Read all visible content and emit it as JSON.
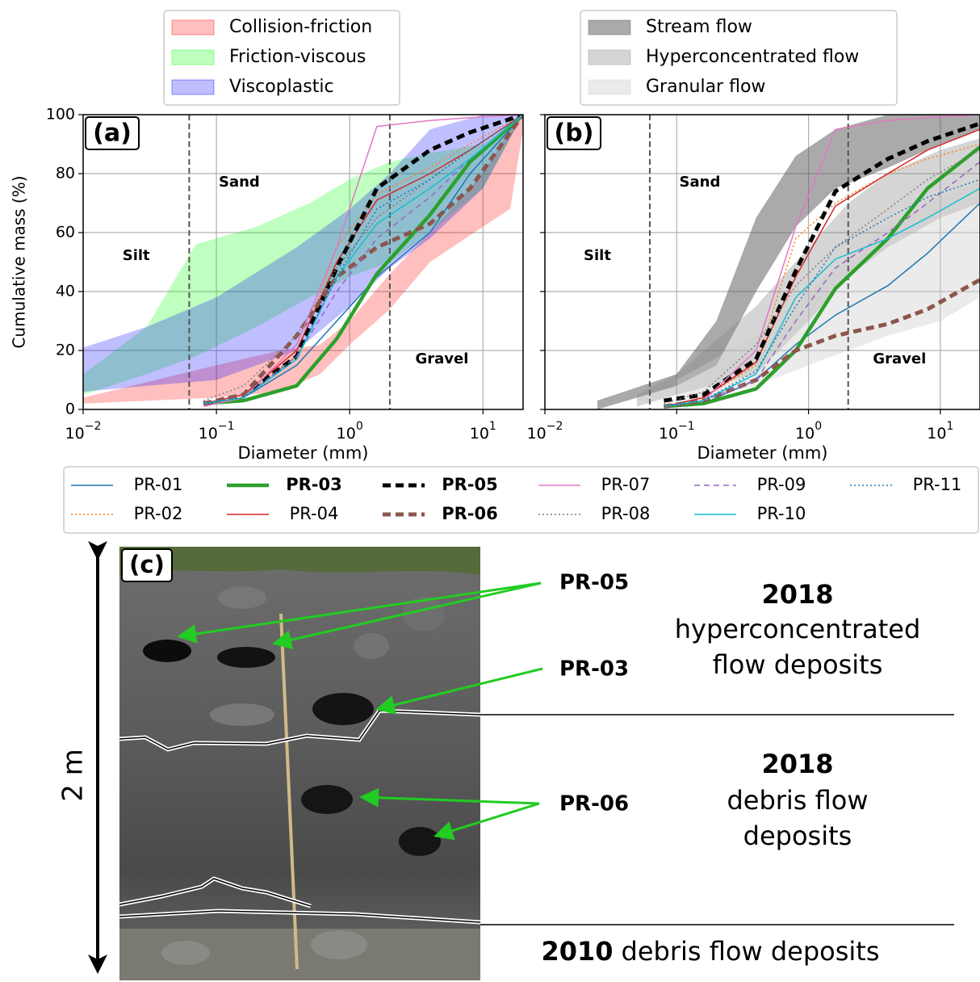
{
  "chart_data": [
    {
      "type": "line",
      "label": "(a)",
      "xlabel": "Diameter (mm)",
      "ylabel": "Cumulative mass (%)",
      "xscale": "log",
      "xlim": [
        0.01,
        20
      ],
      "xticks": [
        {
          "value": 0.01,
          "label": "10",
          "exponent": "−2"
        },
        {
          "value": 0.1,
          "label": "10",
          "exponent": "−1"
        },
        {
          "value": 1,
          "label": "10",
          "exponent": "0"
        },
        {
          "value": 10,
          "label": "10",
          "exponent": "1"
        }
      ],
      "ylim": [
        0,
        100
      ],
      "yticks": [
        0,
        20,
        40,
        60,
        80,
        100
      ],
      "grid": true,
      "boundaries": [
        0.0625,
        2
      ],
      "regions": [
        "Silt",
        "Sand",
        "Gravel"
      ],
      "bands": [
        {
          "name": "Collision-friction",
          "color": "#ff0000",
          "opacity": 0.25,
          "x": [
            0.01,
            0.1,
            0.3,
            0.6,
            1,
            2,
            4,
            10,
            16,
            20
          ],
          "lower": [
            2,
            4,
            6,
            12,
            22,
            34,
            50,
            62,
            68,
            95
          ],
          "upper": [
            4,
            15,
            20,
            22,
            30,
            46,
            60,
            80,
            95,
            100
          ]
        },
        {
          "name": "Friction-viscous",
          "color": "#00ff00",
          "opacity": 0.25,
          "x": [
            0.01,
            0.03,
            0.07,
            0.2,
            0.5,
            1,
            2,
            4,
            10,
            20
          ],
          "lower": [
            5,
            12,
            18,
            28,
            38,
            45,
            50,
            60,
            75,
            100
          ],
          "upper": [
            12,
            28,
            56,
            62,
            70,
            78,
            84,
            87,
            90,
            100
          ]
        },
        {
          "name": "Viscoplastic",
          "color": "#0000ff",
          "opacity": 0.25,
          "x": [
            0.01,
            0.03,
            0.1,
            0.4,
            1,
            2,
            4,
            10,
            20
          ],
          "lower": [
            6,
            8,
            10,
            20,
            35,
            48,
            58,
            75,
            100
          ],
          "upper": [
            21,
            28,
            38,
            55,
            68,
            80,
            95,
            100,
            100
          ]
        }
      ],
      "x": [
        0.08,
        0.16,
        0.4,
        0.8,
        1.6,
        4,
        8,
        20
      ],
      "series": [
        {
          "name": "PR-01",
          "color": "#1f77b4",
          "style": "solid",
          "width": 1.5,
          "bold": false,
          "values": [
            2,
            4,
            15,
            30,
            45,
            60,
            80,
            100
          ]
        },
        {
          "name": "PR-02",
          "color": "#ff7f0e",
          "style": "dotted",
          "width": 1.5,
          "bold": false,
          "values": [
            2,
            5,
            18,
            55,
            73,
            82,
            90,
            100
          ]
        },
        {
          "name": "PR-03",
          "color": "#2ca02c",
          "style": "solid",
          "width": 4.5,
          "bold": true,
          "values": [
            2,
            3,
            8,
            24,
            46,
            66,
            84,
            100
          ]
        },
        {
          "name": "PR-04",
          "color": "#d62728",
          "style": "solid",
          "width": 1.5,
          "bold": false,
          "values": [
            2,
            5,
            20,
            50,
            71,
            80,
            88,
            100
          ]
        },
        {
          "name": "PR-05",
          "color": "#000000",
          "style": "dashed",
          "width": 5,
          "bold": true,
          "values": [
            2,
            5,
            18,
            48,
            75,
            88,
            94,
            100
          ]
        },
        {
          "name": "PR-06",
          "color": "#8c564b",
          "style": "dashed",
          "width": 5,
          "bold": true,
          "values": [
            2,
            5,
            25,
            45,
            55,
            63,
            75,
            100
          ]
        },
        {
          "name": "PR-07",
          "color": "#e377c2",
          "style": "solid",
          "width": 1.5,
          "bold": false,
          "values": [
            1,
            4,
            22,
            55,
            96,
            98,
            99,
            100
          ]
        },
        {
          "name": "PR-08",
          "color": "#7f7f7f",
          "style": "dotted",
          "width": 1.5,
          "bold": false,
          "values": [
            3,
            8,
            25,
            48,
            65,
            78,
            88,
            100
          ]
        },
        {
          "name": "PR-09",
          "color": "#9467bd",
          "style": "dashed",
          "width": 1.5,
          "bold": false,
          "values": [
            2,
            4,
            18,
            40,
            58,
            72,
            85,
            100
          ]
        },
        {
          "name": "PR-10",
          "color": "#17becf",
          "style": "solid",
          "width": 1.5,
          "bold": false,
          "values": [
            2,
            4,
            17,
            45,
            63,
            75,
            85,
            100
          ]
        },
        {
          "name": "PR-11",
          "color": "#1f77b4",
          "style": "dotted",
          "width": 1.5,
          "bold": false,
          "values": [
            2,
            4,
            18,
            45,
            68,
            78,
            88,
            100
          ]
        }
      ]
    },
    {
      "type": "line",
      "label": "(b)",
      "xlabel": "Diameter (mm)",
      "xscale": "log",
      "xlim": [
        0.01,
        20
      ],
      "xticks": [
        {
          "value": 0.01,
          "label": "10",
          "exponent": "−2"
        },
        {
          "value": 0.1,
          "label": "10",
          "exponent": "−1"
        },
        {
          "value": 1,
          "label": "10",
          "exponent": "0"
        },
        {
          "value": 10,
          "label": "10",
          "exponent": "1"
        }
      ],
      "ylim": [
        0,
        100
      ],
      "yticks": [
        0,
        20,
        40,
        60,
        80,
        100
      ],
      "yticklabels": false,
      "grid": true,
      "boundaries": [
        0.0625,
        2
      ],
      "regions": [
        "Silt",
        "Sand",
        "Gravel"
      ],
      "bands": [
        {
          "name": "Stream flow",
          "color": "#555555",
          "opacity": 0.5,
          "x": [
            0.025,
            0.1,
            0.2,
            0.4,
            0.8,
            1.6,
            4,
            10,
            20
          ],
          "lower": [
            0,
            8,
            15,
            40,
            62,
            75,
            82,
            90,
            95
          ],
          "upper": [
            3,
            12,
            30,
            65,
            86,
            95,
            100,
            100,
            100
          ]
        },
        {
          "name": "Hyperconcentrated flow",
          "color": "#888888",
          "opacity": 0.35,
          "x": [
            0.05,
            0.1,
            0.4,
            1,
            2,
            4,
            10,
            20
          ],
          "lower": [
            1,
            5,
            12,
            30,
            45,
            55,
            65,
            70
          ],
          "upper": [
            5,
            12,
            35,
            55,
            70,
            80,
            88,
            92
          ]
        },
        {
          "name": "Granular flow",
          "color": "#cccccc",
          "opacity": 0.4,
          "x": [
            0.1,
            0.4,
            1,
            2,
            4,
            10,
            20
          ],
          "lower": [
            2,
            8,
            15,
            20,
            25,
            30,
            38
          ],
          "upper": [
            10,
            25,
            40,
            52,
            62,
            72,
            78
          ]
        }
      ],
      "x": [
        0.08,
        0.16,
        0.4,
        0.8,
        1.6,
        4,
        8,
        20
      ],
      "series": [
        {
          "values": [
            1,
            2,
            10,
            22,
            32,
            42,
            53,
            70
          ]
        },
        {
          "values": [
            1,
            4,
            15,
            58,
            70,
            80,
            85,
            90
          ]
        },
        {
          "values": [
            1,
            2,
            7,
            20,
            41,
            58,
            75,
            89
          ]
        },
        {
          "values": [
            1,
            4,
            16,
            45,
            69,
            80,
            88,
            95
          ]
        },
        {
          "values": [
            3,
            5,
            17,
            47,
            74,
            85,
            91,
            97
          ]
        },
        {
          "values": [
            1,
            3,
            10,
            20,
            25,
            29,
            34,
            44
          ]
        },
        {
          "values": [
            1,
            3,
            20,
            62,
            95,
            98,
            99,
            100
          ]
        },
        {
          "values": [
            2,
            6,
            22,
            42,
            55,
            68,
            78,
            88
          ]
        },
        {
          "values": [
            1,
            3,
            10,
            30,
            48,
            60,
            70,
            84
          ]
        },
        {
          "values": [
            1,
            3,
            12,
            38,
            51,
            58,
            65,
            75
          ]
        },
        {
          "values": [
            1,
            3,
            13,
            35,
            55,
            65,
            72,
            78
          ]
        }
      ]
    }
  ],
  "photo": {
    "label": "(c)",
    "scale": "2 m",
    "samples": [
      "PR-05",
      "PR-03",
      "PR-06"
    ],
    "units": [
      {
        "year": "2018",
        "lines": [
          "hyperconcentrated",
          "flow deposits"
        ]
      },
      {
        "year": "2018",
        "lines": [
          "debris flow",
          "deposits"
        ]
      },
      {
        "year": "2010",
        "text": "debris flow deposits"
      }
    ]
  }
}
